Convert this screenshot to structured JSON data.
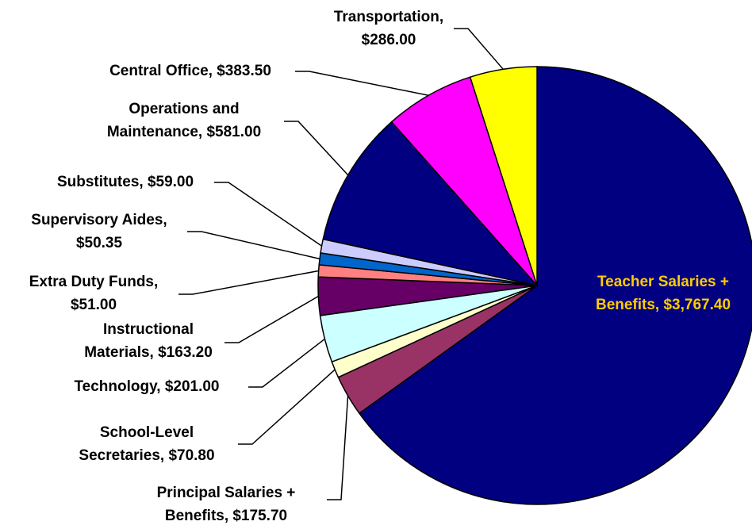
{
  "chart_data": {
    "type": "pie",
    "labels": [
      [
        "Teacher Salaries +",
        "Benefits, $3,767.40"
      ],
      [
        "Principal Salaries +",
        "Benefits, $175.70"
      ],
      [
        "School-Level",
        "Secretaries, $70.80"
      ],
      [
        "Technology, $201.00"
      ],
      [
        "Instructional",
        "Materials, $163.20"
      ],
      [
        "Extra Duty Funds,",
        "$51.00"
      ],
      [
        "Supervisory Aides,",
        "$50.35"
      ],
      [
        "Substitutes, $59.00"
      ],
      [
        "Operations and",
        "Maintenance, $581.00"
      ],
      [
        "Central Office, $383.50"
      ],
      [
        "Transportation,",
        "$286.00"
      ]
    ],
    "values": [
      3767.4,
      175.7,
      70.8,
      201.0,
      163.2,
      51.0,
      50.35,
      59.0,
      581.0,
      383.5,
      286.0
    ],
    "colors": [
      "#000080",
      "#993366",
      "#FFFFCC",
      "#CCFFFF",
      "#660066",
      "#FF8080",
      "#0066CC",
      "#CCCCFF",
      "#000080",
      "#FF00FF",
      "#FFFF00"
    ],
    "label_colors": [
      "#FFCC00",
      "#000000",
      "#000000",
      "#000000",
      "#000000",
      "#000000",
      "#000000",
      "#000000",
      "#000000",
      "#000000",
      "#000000"
    ]
  }
}
